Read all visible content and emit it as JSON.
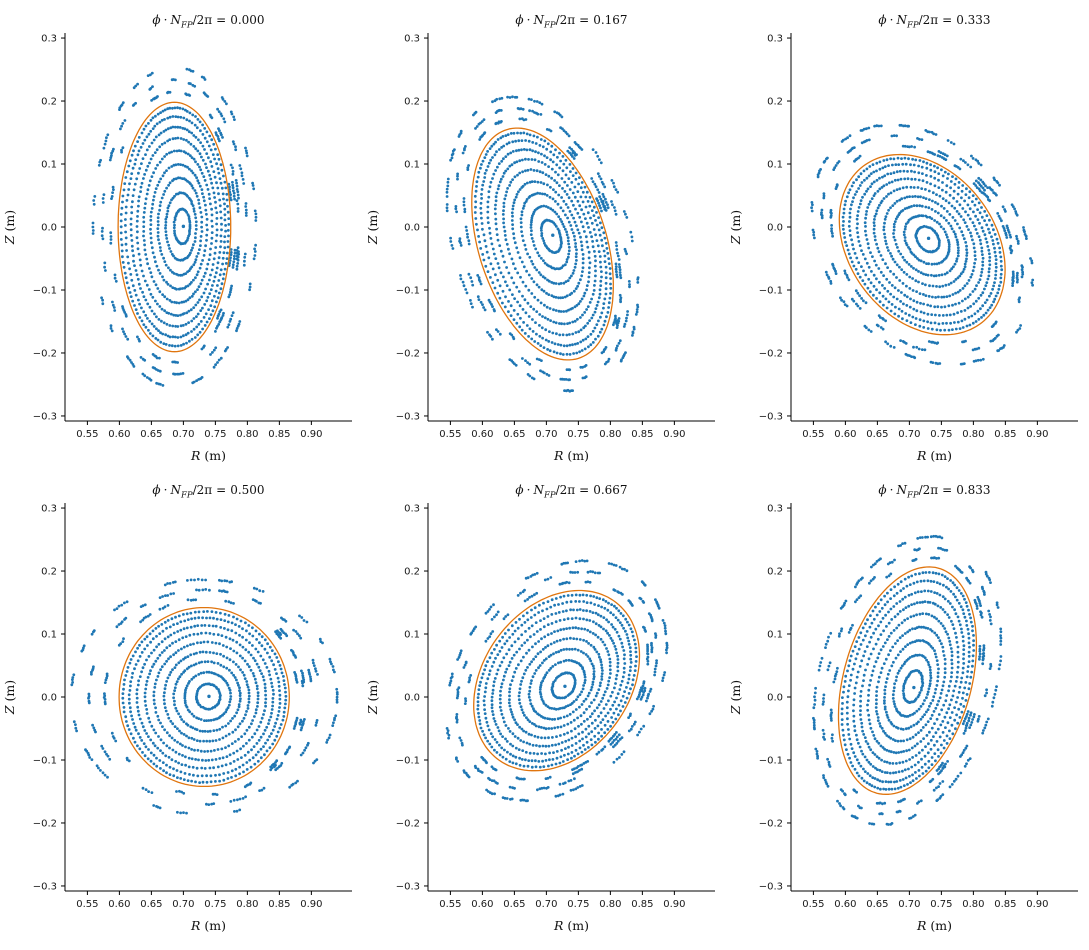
{
  "figure": {
    "background": "#ffffff",
    "kind": "poincare-section-grid",
    "rows": 2,
    "cols": 3
  },
  "chart_data": {
    "type": "scatter",
    "description": "Six Poincare cross-sections of nested stellarator flux surfaces at toroidal angles phi*NFP/2pi = 0.000 ... 0.833. Blue dots: field-line punctures forming nested closed surfaces inside an orange target boundary; fragmented dashed surfaces and small island chains lie outside the boundary.",
    "title_parts": {
      "phi": "ϕ",
      "dot": "·",
      "N": "N",
      "sub": "FP",
      "slashpi": "/2π",
      "eq": "="
    },
    "xlabel": {
      "var": "R",
      "unit": " (m)"
    },
    "ylabel": {
      "var": "Z",
      "unit": " (m)"
    },
    "xlim": [
      0.515,
      0.9635
    ],
    "ylim": [
      -0.308,
      0.308
    ],
    "xticks": [
      0.55,
      0.6,
      0.65,
      0.7,
      0.75,
      0.8,
      0.85,
      0.9
    ],
    "xtick_labels": [
      "0.55",
      "0.60",
      "0.65",
      "0.70",
      "0.75",
      "0.80",
      "0.85",
      "0.90"
    ],
    "yticks": [
      0.3,
      0.2,
      0.1,
      0.0,
      -0.1,
      -0.2,
      -0.3
    ],
    "ytick_labels": [
      "0.3",
      "0.2",
      "0.1",
      "0.0",
      "−0.1",
      "−0.2",
      "−0.3"
    ],
    "colors": {
      "points": "#1f77b4",
      "boundary": "#e0750e",
      "spine": "#000000",
      "text": "#1a1a1a"
    },
    "marker_radius_px": 1.4,
    "panels": [
      {
        "title_value": "0.000",
        "magnetic_axis": [
          0.7,
          0.001
        ],
        "boundary_center": [
          0.686,
          0.0
        ],
        "semi_minor_R": 0.088,
        "semi_major_Z": 0.198,
        "tilt_deg": 0,
        "outer_growth": [
          1.35,
          0.85
        ],
        "inner_scales": [
          0.14,
          0.27,
          0.39,
          0.5,
          0.61,
          0.71,
          0.8,
          0.885,
          0.955
        ],
        "outer_scales": [
          1.1,
          1.21,
          1.33
        ],
        "islands": [
          {
            "angle_deg": 16,
            "s0": 1.02,
            "rows": 3,
            "dots": 7
          },
          {
            "angle_deg": -14,
            "s0": 1.02,
            "rows": 3,
            "dots": 7
          },
          {
            "angle_deg": 44,
            "s0": 1.05,
            "rows": 2,
            "dots": 5
          },
          {
            "angle_deg": -42,
            "s0": 1.05,
            "rows": 2,
            "dots": 5
          }
        ],
        "seed": 11
      },
      {
        "title_value": "0.167",
        "magnetic_axis": [
          0.71,
          -0.013
        ],
        "boundary_center": [
          0.694,
          -0.027
        ],
        "semi_minor_R": 0.1,
        "semi_major_Z": 0.19,
        "tilt_deg": 17,
        "outer_growth": [
          1.15,
          0.8
        ],
        "inner_scales": [
          0.14,
          0.27,
          0.39,
          0.5,
          0.61,
          0.71,
          0.8,
          0.885,
          0.955
        ],
        "outer_scales": [
          1.1,
          1.21,
          1.33
        ],
        "islands": [
          {
            "angle_deg": 10,
            "s0": 1.04,
            "rows": 3,
            "dots": 6
          },
          {
            "angle_deg": -22,
            "s0": 1.05,
            "rows": 2,
            "dots": 6
          },
          {
            "angle_deg": 38,
            "s0": 1.06,
            "rows": 2,
            "dots": 5
          },
          {
            "angle_deg": -48,
            "s0": 1.07,
            "rows": 2,
            "dots": 5
          }
        ],
        "seed": 22
      },
      {
        "title_value": "0.333",
        "magnetic_axis": [
          0.73,
          -0.018
        ],
        "boundary_center": [
          0.72,
          -0.028
        ],
        "semi_minor_R": 0.115,
        "semi_major_Z": 0.155,
        "tilt_deg": 35,
        "outer_growth": [
          1.0,
          1.0
        ],
        "inner_scales": [
          0.14,
          0.27,
          0.39,
          0.5,
          0.61,
          0.71,
          0.8,
          0.885,
          0.955
        ],
        "outer_scales": [
          1.1,
          1.21,
          1.33
        ],
        "islands": [
          {
            "angle_deg": 8,
            "s0": 1.08,
            "rows": 3,
            "dots": 6
          },
          {
            "angle_deg": -20,
            "s0": 1.09,
            "rows": 2,
            "dots": 6
          },
          {
            "angle_deg": 34,
            "s0": 1.1,
            "rows": 2,
            "dots": 5
          },
          {
            "angle_deg": -46,
            "s0": 1.1,
            "rows": 2,
            "dots": 5
          }
        ],
        "seed": 33
      },
      {
        "title_value": "0.500",
        "magnetic_axis": [
          0.74,
          0.001
        ],
        "boundary_center": [
          0.7325,
          0.0
        ],
        "semi_minor_R": 0.133,
        "semi_major_Z": 0.142,
        "tilt_deg": 0,
        "outer_growth": [
          1.7,
          0.95
        ],
        "inner_scales": [
          0.14,
          0.27,
          0.39,
          0.5,
          0.61,
          0.71,
          0.8,
          0.885,
          0.955
        ],
        "outer_scales": [
          1.1,
          1.21,
          1.33
        ],
        "islands": [
          {
            "angle_deg": 12,
            "s0": 1.06,
            "rows": 3,
            "dots": 6
          },
          {
            "angle_deg": -16,
            "s0": 1.07,
            "rows": 2,
            "dots": 6
          },
          {
            "angle_deg": 40,
            "s0": 1.08,
            "rows": 2,
            "dots": 5
          },
          {
            "angle_deg": -44,
            "s0": 1.08,
            "rows": 2,
            "dots": 5
          }
        ],
        "seed": 44
      },
      {
        "title_value": "0.667",
        "magnetic_axis": [
          0.729,
          0.017
        ],
        "boundary_center": [
          0.716,
          0.026
        ],
        "semi_minor_R": 0.115,
        "semi_major_Z": 0.155,
        "tilt_deg": -35,
        "outer_growth": [
          1.0,
          1.0
        ],
        "inner_scales": [
          0.14,
          0.27,
          0.39,
          0.5,
          0.61,
          0.71,
          0.8,
          0.885,
          0.955
        ],
        "outer_scales": [
          1.1,
          1.21,
          1.33
        ],
        "islands": [
          {
            "angle_deg": -8,
            "s0": 1.08,
            "rows": 3,
            "dots": 6
          },
          {
            "angle_deg": 20,
            "s0": 1.09,
            "rows": 2,
            "dots": 6
          },
          {
            "angle_deg": -34,
            "s0": 1.1,
            "rows": 2,
            "dots": 5
          },
          {
            "angle_deg": 46,
            "s0": 1.1,
            "rows": 2,
            "dots": 5
          }
        ],
        "seed": 55
      },
      {
        "title_value": "0.833",
        "magnetic_axis": [
          0.707,
          0.015
        ],
        "boundary_center": [
          0.697,
          0.026
        ],
        "semi_minor_R": 0.1,
        "semi_major_Z": 0.185,
        "tilt_deg": -15,
        "outer_growth": [
          1.15,
          0.8
        ],
        "inner_scales": [
          0.14,
          0.27,
          0.39,
          0.5,
          0.61,
          0.71,
          0.8,
          0.885,
          0.955
        ],
        "outer_scales": [
          1.1,
          1.21,
          1.33
        ],
        "islands": [
          {
            "angle_deg": -10,
            "s0": 1.04,
            "rows": 3,
            "dots": 6
          },
          {
            "angle_deg": 22,
            "s0": 1.05,
            "rows": 2,
            "dots": 6
          },
          {
            "angle_deg": -38,
            "s0": 1.06,
            "rows": 2,
            "dots": 5
          },
          {
            "angle_deg": 48,
            "s0": 1.07,
            "rows": 2,
            "dots": 5
          }
        ],
        "seed": 66
      }
    ]
  }
}
